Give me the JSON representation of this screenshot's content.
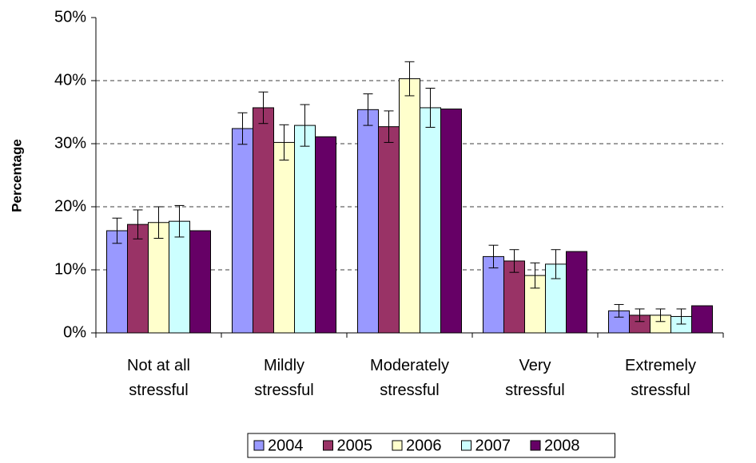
{
  "chart_data": {
    "type": "bar",
    "y_label": "Percentage",
    "categories": [
      "Not at all stressful",
      "Mildly stressful",
      "Moderately stressful",
      "Very stressful",
      "Extremely stressful"
    ],
    "series": [
      {
        "name": "2004",
        "color": "#9999ff",
        "values": [
          16.2,
          32.4,
          35.4,
          12.1,
          3.5
        ],
        "errors": [
          2.0,
          2.5,
          2.5,
          1.8,
          1.0
        ]
      },
      {
        "name": "2005",
        "color": "#993366",
        "values": [
          17.2,
          35.7,
          32.7,
          11.4,
          2.8
        ],
        "errors": [
          2.3,
          2.5,
          2.5,
          1.8,
          1.0
        ]
      },
      {
        "name": "2006",
        "color": "#ffffcc",
        "values": [
          17.5,
          30.2,
          40.3,
          9.1,
          2.8
        ],
        "errors": [
          2.5,
          2.8,
          2.7,
          2.0,
          1.0
        ]
      },
      {
        "name": "2007",
        "color": "#ccffff",
        "values": [
          17.7,
          32.9,
          35.7,
          10.9,
          2.6
        ],
        "errors": [
          2.5,
          3.3,
          3.1,
          2.3,
          1.2
        ]
      },
      {
        "name": "2008",
        "color": "#660066",
        "values": [
          16.2,
          31.1,
          35.5,
          12.9,
          4.3
        ],
        "errors": [
          null,
          null,
          null,
          null,
          null
        ]
      }
    ],
    "ylim": [
      0,
      50
    ],
    "yticks": [
      {
        "value": 0,
        "label": "0%"
      },
      {
        "value": 10,
        "label": "10%"
      },
      {
        "value": 20,
        "label": "20%"
      },
      {
        "value": 30,
        "label": "30%"
      },
      {
        "value": 40,
        "label": "40%"
      },
      {
        "value": 50,
        "label": "50%"
      }
    ],
    "grid": true,
    "legend": "bottom"
  }
}
